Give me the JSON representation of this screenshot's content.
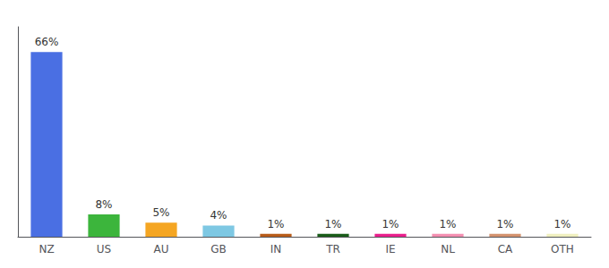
{
  "chart_data": {
    "type": "bar",
    "categories": [
      "NZ",
      "US",
      "AU",
      "GB",
      "IN",
      "TR",
      "IE",
      "NL",
      "CA",
      "OTH"
    ],
    "values": [
      66,
      8,
      5,
      4,
      1,
      1,
      1,
      1,
      1,
      1
    ],
    "value_labels": [
      "66%",
      "8%",
      "5%",
      "4%",
      "1%",
      "1%",
      "1%",
      "1%",
      "1%",
      "1%"
    ],
    "colors": [
      "#4a6fe3",
      "#3cb53c",
      "#f5a623",
      "#7ec8e3",
      "#b85c1a",
      "#1a5c1a",
      "#e91e8c",
      "#f48fb1",
      "#d4926e",
      "#f0f0c0"
    ],
    "ylim": [
      0,
      75
    ],
    "grid": false,
    "tick_labels": "x",
    "data_labels": true
  }
}
